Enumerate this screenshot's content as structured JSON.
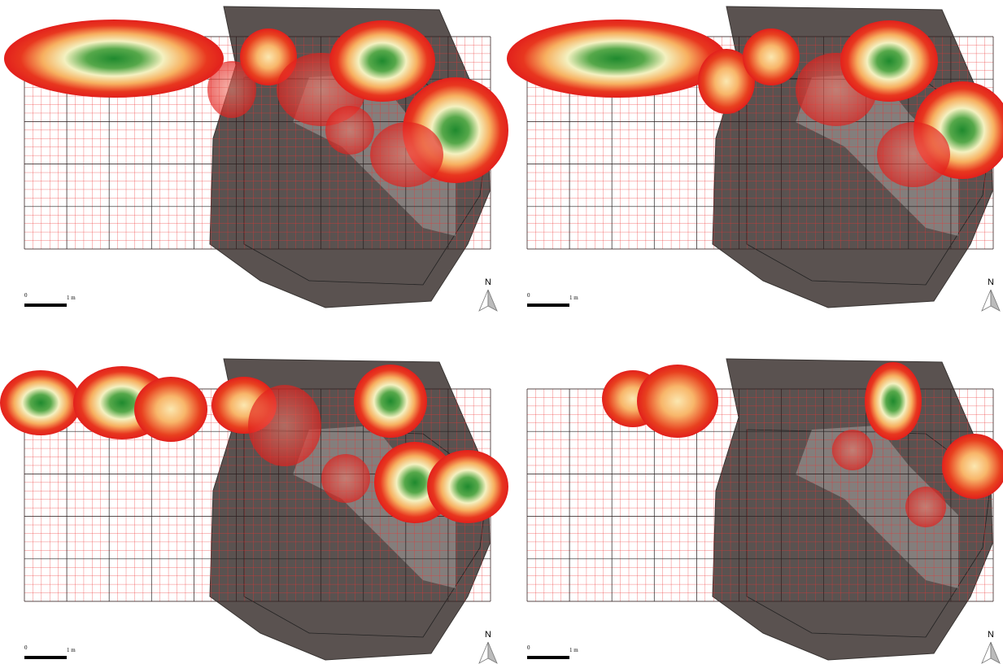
{
  "panels": [
    {
      "scale": {
        "zero": "0",
        "unit": "1 m"
      },
      "north": "N"
    },
    {
      "scale": {
        "zero": "0",
        "unit": "1 m"
      },
      "north": "N"
    },
    {
      "scale": {
        "zero": "0",
        "unit": "1 m"
      },
      "north": "N"
    },
    {
      "scale": {
        "zero": "0",
        "unit": "1 m"
      },
      "north": "N"
    }
  ]
}
